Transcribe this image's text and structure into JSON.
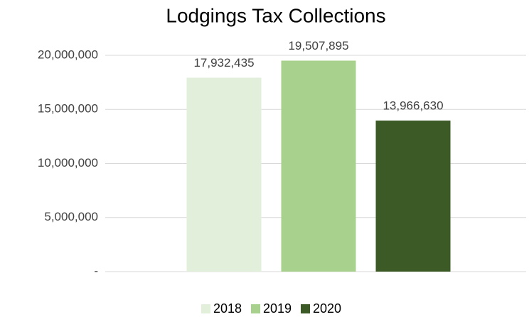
{
  "chart_data": {
    "type": "bar",
    "title": "Lodgings Tax Collections",
    "categories": [
      null
    ],
    "series": [
      {
        "name": "2018",
        "color": "#e2efda",
        "values": [
          17932435
        ],
        "value_labels": [
          "17,932,435"
        ]
      },
      {
        "name": "2019",
        "color": "#a9d18e",
        "values": [
          19507895
        ],
        "value_labels": [
          "19,507,895"
        ]
      },
      {
        "name": "2020",
        "color": "#3b5a26",
        "values": [
          13966630
        ],
        "value_labels": [
          "13,966,630"
        ]
      }
    ],
    "ylim": [
      0,
      20000000
    ],
    "yticks": [
      {
        "value": 0,
        "label": "-"
      },
      {
        "value": 5000000,
        "label": "5,000,000"
      },
      {
        "value": 10000000,
        "label": "10,000,000"
      },
      {
        "value": 15000000,
        "label": "15,000,000"
      },
      {
        "value": 20000000,
        "label": "20,000,000"
      }
    ],
    "grid": true,
    "legend": "bottom"
  }
}
